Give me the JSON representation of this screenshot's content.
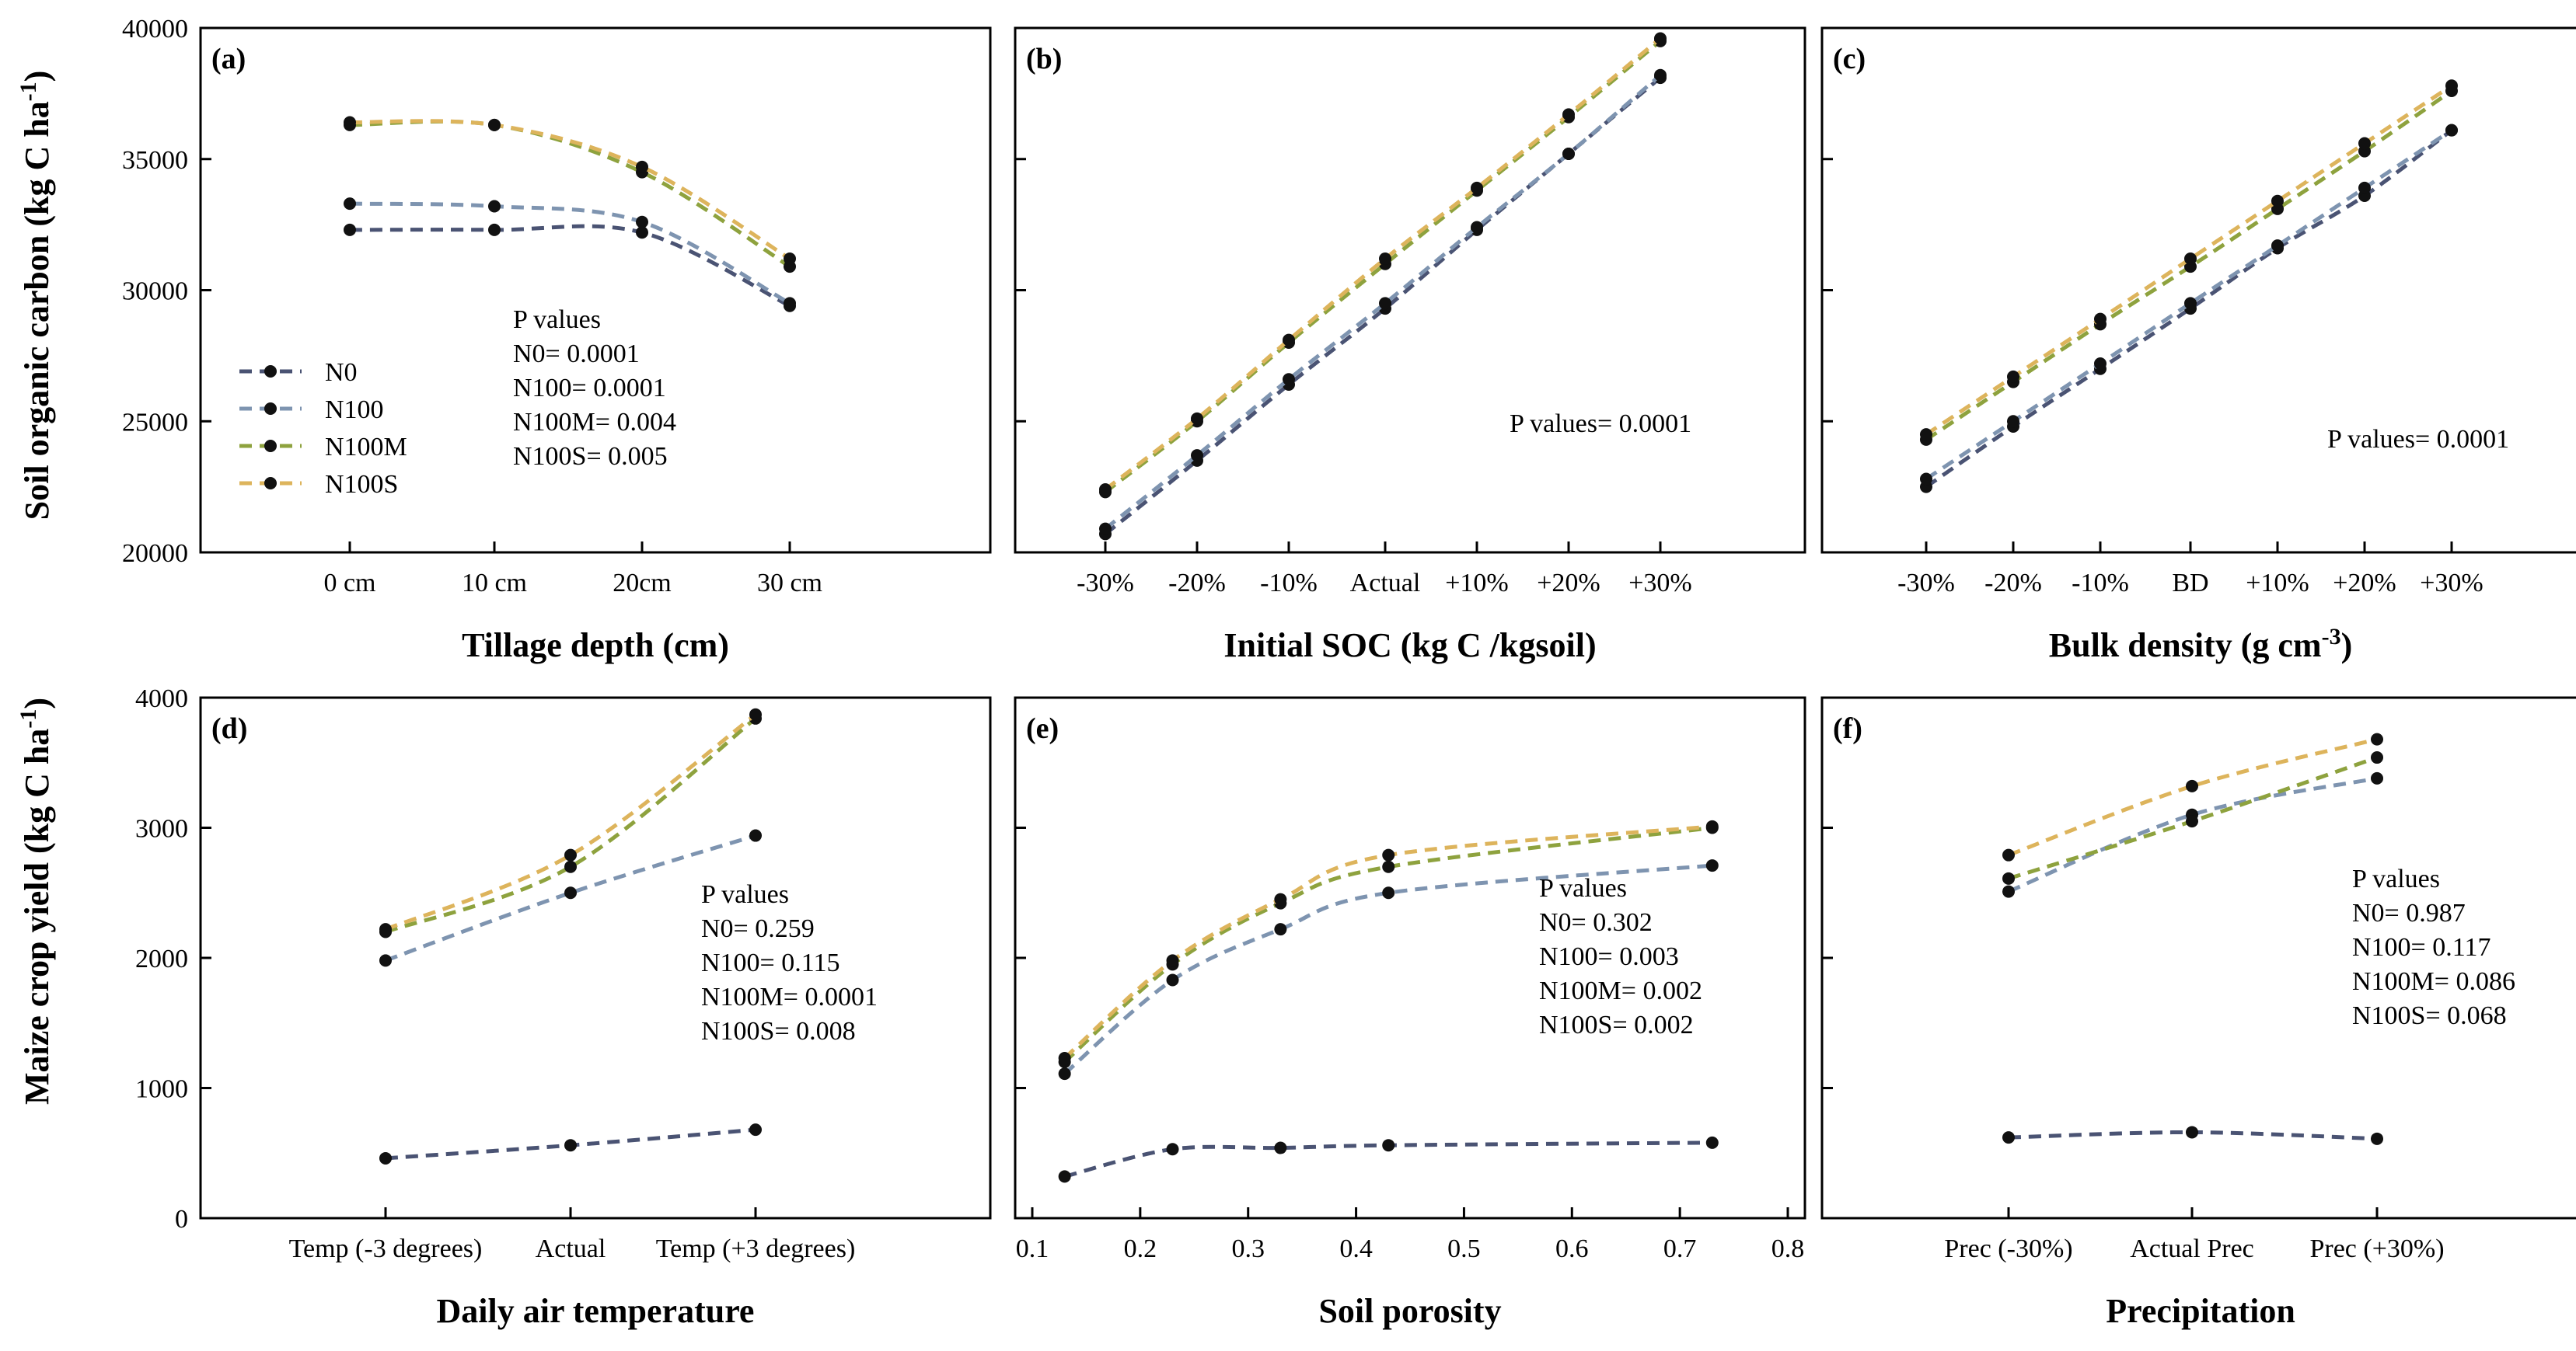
{
  "y_labels": {
    "top": {
      "main": "Soil organic carbon (kg C ha",
      "sup": "-1",
      "close": ")"
    },
    "bottom": {
      "main": "Maize crop yield (kg C ha",
      "sup": "-1",
      "close": ")"
    }
  },
  "colors": {
    "N0": "#4a5373",
    "N100": "#7e94b0",
    "N100M": "#8ea23e",
    "N100S": "#ddb45c",
    "marker": "#111111",
    "axis": "#000000"
  },
  "legend": {
    "series": [
      "N0",
      "N100",
      "N100M",
      "N100S"
    ]
  },
  "chart_data": [
    {
      "panel": "(a)",
      "type": "line",
      "xaxis": "category",
      "categories": [
        "0 cm",
        "10 cm",
        "20cm",
        "30 cm"
      ],
      "xlabel": {
        "main": "Tillage depth (cm)"
      },
      "ylim": [
        20000,
        40000
      ],
      "yticks": [
        20000,
        25000,
        30000,
        35000,
        40000
      ],
      "show_ytick_labels": true,
      "series": [
        {
          "name": "N0",
          "values": [
            32300,
            32300,
            32200,
            29400
          ]
        },
        {
          "name": "N100",
          "values": [
            33300,
            33200,
            32600,
            29500
          ]
        },
        {
          "name": "N100M",
          "values": [
            36300,
            36300,
            34500,
            30900
          ]
        },
        {
          "name": "N100S",
          "values": [
            36400,
            36300,
            34700,
            31200
          ]
        }
      ],
      "annotation": [
        "P values",
        "N0= 0.0001",
        "N100= 0.0001",
        "N100M= 0.004",
        "N100S= 0.005"
      ],
      "has_legend": true
    },
    {
      "panel": "(b)",
      "type": "line",
      "xaxis": "category",
      "categories": [
        "-30%",
        "-20%",
        "-10%",
        "Actual",
        "+10%",
        "+20%",
        "+30%"
      ],
      "xlabel": {
        "main": "Initial SOC (kg C /kgsoil)"
      },
      "ylim": [
        20000,
        40000
      ],
      "yticks": [
        20000,
        25000,
        30000,
        35000,
        40000
      ],
      "show_ytick_labels": false,
      "series": [
        {
          "name": "N0",
          "values": [
            20700,
            23500,
            26400,
            29300,
            32300,
            35200,
            38100
          ]
        },
        {
          "name": "N100",
          "values": [
            20900,
            23700,
            26600,
            29500,
            32400,
            35200,
            38200
          ]
        },
        {
          "name": "N100M",
          "values": [
            22300,
            25000,
            28000,
            31000,
            33800,
            36600,
            39500
          ]
        },
        {
          "name": "N100S",
          "values": [
            22400,
            25100,
            28100,
            31200,
            33900,
            36700,
            39600
          ]
        }
      ],
      "annotation": [
        "P values= 0.0001"
      ],
      "has_legend": false
    },
    {
      "panel": "(c)",
      "type": "line",
      "xaxis": "category",
      "categories": [
        "-30%",
        "-20%",
        "-10%",
        "BD",
        "+10%",
        "+20%",
        "+30%"
      ],
      "xlabel": {
        "main": "Bulk density (g cm",
        "sup": "-3",
        "close": ")"
      },
      "ylim": [
        20000,
        40000
      ],
      "yticks": [
        20000,
        25000,
        30000,
        35000,
        40000
      ],
      "show_ytick_labels": false,
      "series": [
        {
          "name": "N0",
          "values": [
            22500,
            24800,
            27000,
            29300,
            31600,
            33600,
            36100
          ]
        },
        {
          "name": "N100",
          "values": [
            22800,
            25000,
            27200,
            29500,
            31700,
            33900,
            36100
          ]
        },
        {
          "name": "N100M",
          "values": [
            24300,
            26500,
            28700,
            30900,
            33100,
            35300,
            37600
          ]
        },
        {
          "name": "N100S",
          "values": [
            24500,
            26700,
            28900,
            31200,
            33400,
            35600,
            37800
          ]
        }
      ],
      "annotation": [
        "P values= 0.0001"
      ],
      "has_legend": false
    },
    {
      "panel": "(d)",
      "type": "line",
      "xaxis": "category",
      "categories": [
        "Temp (-3 degrees)",
        "Actual",
        "Temp (+3 degrees)"
      ],
      "xlabel": {
        "main": "Daily air temperature"
      },
      "ylim": [
        0,
        4000
      ],
      "yticks": [
        0,
        1000,
        2000,
        3000,
        4000
      ],
      "show_ytick_labels": true,
      "series": [
        {
          "name": "N0",
          "values": [
            460,
            560,
            680
          ]
        },
        {
          "name": "N100",
          "values": [
            1980,
            2500,
            2940
          ]
        },
        {
          "name": "N100M",
          "values": [
            2200,
            2700,
            3840
          ]
        },
        {
          "name": "N100S",
          "values": [
            2220,
            2790,
            3870
          ]
        }
      ],
      "annotation": [
        "P values",
        "N0= 0.259",
        "N100= 0.115",
        "N100M= 0.0001",
        "N100S= 0.008"
      ],
      "has_legend": false
    },
    {
      "panel": "(e)",
      "type": "line",
      "xaxis": "numeric",
      "xlim": [
        0.1,
        0.8
      ],
      "xticks": [
        0.1,
        0.2,
        0.3,
        0.4,
        0.5,
        0.6,
        0.7,
        0.8
      ],
      "x": [
        0.13,
        0.23,
        0.33,
        0.43,
        0.73
      ],
      "xlabel": {
        "main": "Soil porosity"
      },
      "ylim": [
        0,
        4000
      ],
      "yticks": [
        0,
        1000,
        2000,
        3000,
        4000
      ],
      "show_ytick_labels": false,
      "series": [
        {
          "name": "N0",
          "values": [
            320,
            530,
            540,
            560,
            580
          ]
        },
        {
          "name": "N100",
          "values": [
            1110,
            1830,
            2220,
            2500,
            2710
          ]
        },
        {
          "name": "N100M",
          "values": [
            1200,
            1950,
            2420,
            2700,
            3000
          ]
        },
        {
          "name": "N100S",
          "values": [
            1230,
            1980,
            2450,
            2790,
            3010
          ]
        }
      ],
      "annotation": [
        "P values",
        "N0= 0.302",
        "N100= 0.003",
        "N100M= 0.002",
        "N100S= 0.002"
      ],
      "has_legend": false
    },
    {
      "panel": "(f)",
      "type": "line",
      "xaxis": "category",
      "categories": [
        "Prec (-30%)",
        "Actual Prec",
        "Prec (+30%)"
      ],
      "xlabel": {
        "main": "Precipitation"
      },
      "ylim": [
        0,
        4000
      ],
      "yticks": [
        0,
        1000,
        2000,
        3000,
        4000
      ],
      "show_ytick_labels": false,
      "series": [
        {
          "name": "N0",
          "values": [
            620,
            660,
            610
          ]
        },
        {
          "name": "N100",
          "values": [
            2510,
            3100,
            3380
          ]
        },
        {
          "name": "N100M",
          "values": [
            2610,
            3050,
            3540
          ]
        },
        {
          "name": "N100S",
          "values": [
            2790,
            3320,
            3680
          ]
        }
      ],
      "annotation": [
        "P values",
        "N0= 0.987",
        "N100= 0.117",
        "N100M= 0.086",
        "N100S= 0.068"
      ],
      "has_legend": false
    }
  ]
}
